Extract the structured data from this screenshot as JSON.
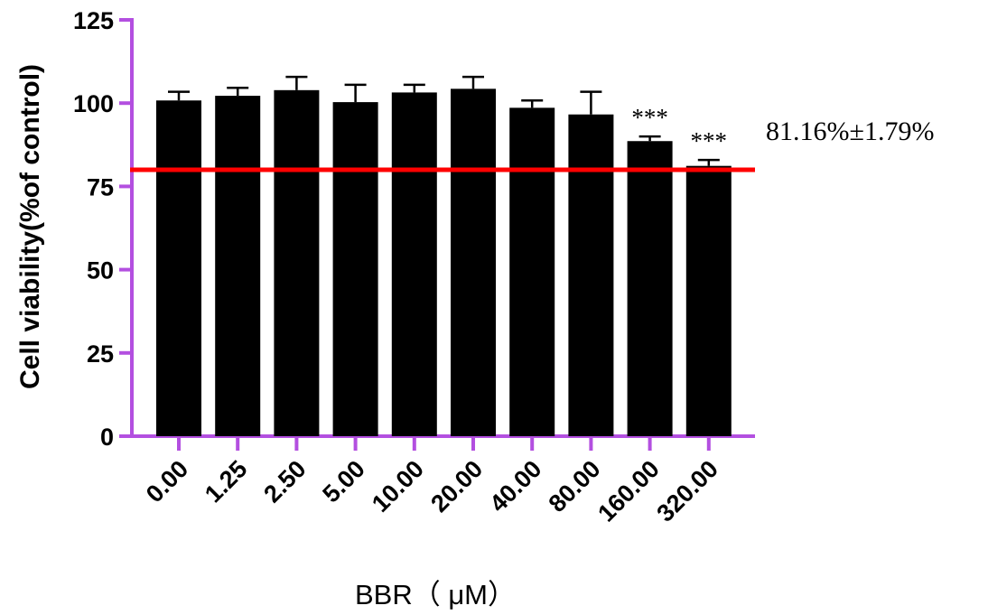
{
  "chart_data": {
    "type": "bar",
    "categories": [
      "0.00",
      "1.25",
      "2.50",
      "5.00",
      "10.00",
      "20.00",
      "40.00",
      "80.00",
      "160.00",
      "320.00"
    ],
    "values": [
      100.8,
      102.2,
      103.9,
      100.3,
      103.2,
      104.3,
      98.6,
      96.6,
      88.6,
      81.16
    ],
    "errors": [
      2.6,
      2.4,
      4.0,
      5.2,
      2.3,
      3.6,
      2.2,
      6.8,
      1.4,
      1.79
    ],
    "significance": [
      "",
      "",
      "",
      "",
      "",
      "",
      "",
      "",
      "***",
      "***"
    ],
    "xlabel": "BBR（ μM）",
    "ylabel": "Cell viability(%of control)",
    "ylim": [
      0,
      125
    ],
    "yticks": [
      "0",
      "25",
      "50",
      "75",
      "100",
      "125"
    ],
    "reference_line": {
      "value": 80,
      "color": "#ff0000"
    },
    "annotation": "81.16%±1.79%",
    "colors": {
      "bars": "#000000",
      "axes": "#b34fe0",
      "reference": "#ff0000"
    },
    "grid": false,
    "legend": "none"
  }
}
